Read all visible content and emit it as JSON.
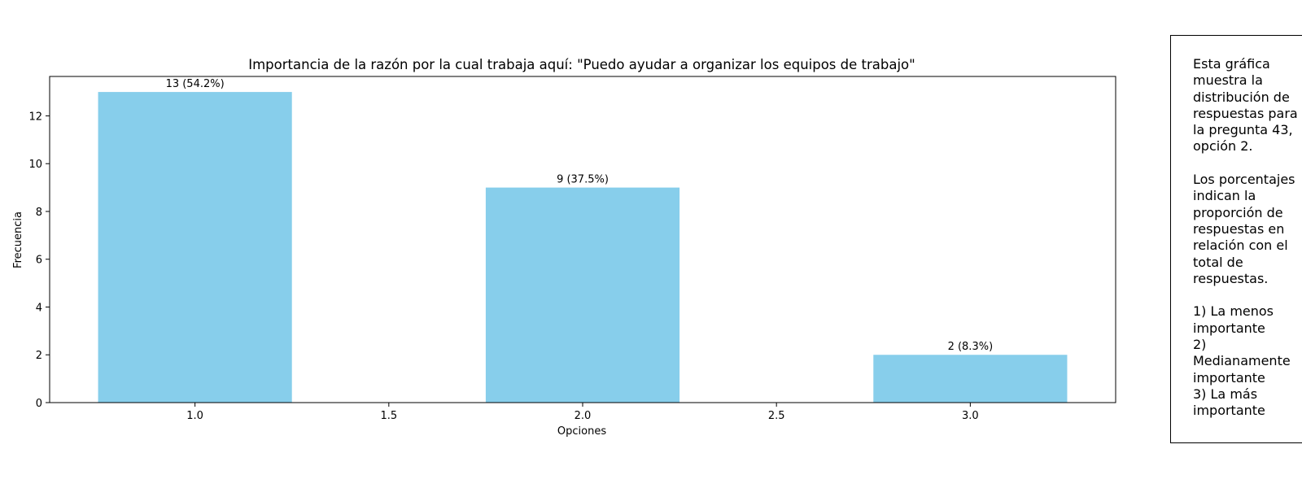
{
  "chart_data": {
    "type": "bar",
    "title": "Importancia de la razón por la cual trabaja aquí: \"Puedo ayudar a organizar los equipos de trabajo\"",
    "xlabel": "Opciones",
    "ylabel": "Frecuencia",
    "x": [
      1.0,
      2.0,
      3.0
    ],
    "values": [
      13,
      9,
      2
    ],
    "data_labels": [
      "13 (54.2%)",
      "9 (37.5%)",
      "2 (8.3%)"
    ],
    "xlim": [
      0.625,
      3.375
    ],
    "ylim": [
      0,
      13.65
    ],
    "xticks": [
      1.0,
      1.5,
      2.0,
      2.5,
      3.0
    ],
    "xtick_labels": [
      "1.0",
      "1.5",
      "2.0",
      "2.5",
      "3.0"
    ],
    "yticks": [
      0,
      2,
      4,
      6,
      8,
      10,
      12
    ],
    "ytick_labels": [
      "0",
      "2",
      "4",
      "6",
      "8",
      "10",
      "12"
    ],
    "bar_width": 0.5,
    "grid": false,
    "bar_color": "#87CEEB"
  },
  "note": {
    "text": "Esta gráfica\nmuestra la\ndistribución de\nrespuestas para\nla pregunta 43,\nopción 2.\n\nLos porcentajes\nindican la\nproporción de\nrespuestas en\nrelación con el\ntotal de\nrespuestas.\n\n1) La menos\nimportante\n2)\nMedianamente\nimportante\n3) La más\nimportante"
  }
}
